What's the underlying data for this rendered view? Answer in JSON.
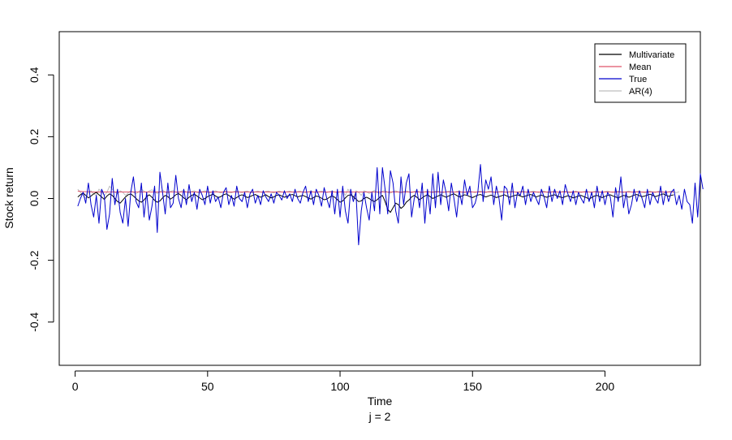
{
  "chart_data": {
    "type": "line",
    "xlabel": "Time",
    "subtitle": "j = 2",
    "ylabel": "Stock return",
    "xlim": [
      -6,
      236
    ],
    "ylim": [
      -0.54,
      0.54
    ],
    "x_ticks": [
      0,
      50,
      100,
      150,
      200
    ],
    "y_ticks": [
      -0.4,
      -0.2,
      0.0,
      0.2,
      0.4
    ],
    "x_tick_labels": [
      "0",
      "50",
      "100",
      "150",
      "200"
    ],
    "y_tick_labels": [
      "-0.4",
      "-0.2",
      "0.0",
      "0.2",
      "0.4"
    ],
    "legend": {
      "position": "top-right",
      "entries": [
        "Multivariate",
        "Mean",
        "True",
        "AR(4)"
      ]
    },
    "series": [
      {
        "name": "Multivariate",
        "color": "#000000",
        "x_start": 1,
        "values": [
          0.005,
          0.012,
          0.018,
          0.01,
          0.002,
          0.008,
          0.015,
          0.02,
          0.012,
          0.005,
          -0.003,
          0.008,
          0.015,
          0.01,
          0.0,
          -0.01,
          -0.015,
          -0.005,
          0.005,
          0.012,
          0.015,
          0.008,
          0.0,
          -0.008,
          -0.012,
          -0.005,
          0.006,
          0.012,
          0.004,
          -0.006,
          -0.012,
          -0.008,
          0.002,
          0.01,
          0.006,
          -0.002,
          0.004,
          0.012,
          0.016,
          0.01,
          0.002,
          -0.004,
          0.004,
          0.01,
          0.014,
          0.008,
          0.002,
          -0.004,
          0.0,
          0.006,
          0.01,
          0.014,
          0.008,
          0.003,
          0.006,
          0.012,
          0.015,
          0.01,
          0.004,
          -0.002,
          0.003,
          0.009,
          0.012,
          0.008,
          0.003,
          0.006,
          0.01,
          0.013,
          0.008,
          0.004,
          0.008,
          0.012,
          0.006,
          0.002,
          0.005,
          0.01,
          0.012,
          0.008,
          0.004,
          0.007,
          0.011,
          0.013,
          0.009,
          0.005,
          0.008,
          0.01,
          0.006,
          0.002,
          -0.002,
          0.003,
          0.008,
          0.006,
          0.001,
          -0.004,
          -0.002,
          0.004,
          0.008,
          0.004,
          -0.004,
          -0.012,
          -0.008,
          0.002,
          0.01,
          0.012,
          0.006,
          -0.002,
          -0.01,
          -0.008,
          0.0,
          0.004,
          0.0,
          -0.006,
          -0.01,
          -0.004,
          0.004,
          0.01,
          -0.01,
          -0.035,
          -0.045,
          -0.03,
          -0.015,
          -0.02,
          -0.032,
          -0.025,
          -0.012,
          -0.005,
          0.005,
          0.01,
          0.004,
          -0.004,
          0.002,
          0.008,
          0.012,
          0.006,
          0.0,
          0.004,
          0.008,
          0.012,
          0.008,
          0.004,
          0.008,
          0.012,
          0.015,
          0.01,
          0.005,
          0.008,
          0.012,
          0.01,
          0.006,
          0.003,
          0.007,
          0.011,
          0.013,
          0.009,
          0.005,
          0.008,
          0.011,
          0.007,
          0.003,
          0.006,
          0.009,
          0.012,
          0.008,
          0.004,
          0.007,
          0.01,
          0.012,
          0.008,
          0.005,
          0.008,
          0.011,
          0.013,
          0.009,
          0.005,
          0.008,
          0.011,
          0.007,
          0.004,
          0.007,
          0.01,
          0.012,
          0.008,
          0.005,
          0.003,
          0.006,
          0.009,
          0.006,
          0.002,
          0.005,
          0.008,
          0.01,
          0.006,
          0.003,
          -0.002,
          0.003,
          0.008,
          0.01,
          0.006,
          0.003,
          0.007,
          0.01,
          0.012,
          0.008,
          0.005,
          0.002,
          0.006,
          0.01,
          0.008,
          0.004,
          0.007,
          0.011,
          0.013,
          0.009,
          0.006,
          0.008,
          0.011,
          0.014,
          0.01,
          0.006,
          0.009,
          0.012,
          0.015,
          0.011,
          0.007,
          0.01,
          0.012
        ]
      },
      {
        "name": "Mean",
        "color": "#df536b",
        "x_start": 1,
        "values": [
          0.024,
          0.023,
          0.022,
          0.022,
          0.022,
          0.021,
          0.021,
          0.021,
          0.021,
          0.021,
          0.021,
          0.021,
          0.021,
          0.021,
          0.021,
          0.021,
          0.021,
          0.021,
          0.021,
          0.021,
          0.021,
          0.021,
          0.021,
          0.021,
          0.021,
          0.021,
          0.021,
          0.021,
          0.021,
          0.021,
          0.021,
          0.021,
          0.021,
          0.021,
          0.021,
          0.021,
          0.021,
          0.021,
          0.021,
          0.021,
          0.021,
          0.021,
          0.021,
          0.021,
          0.021,
          0.021,
          0.021,
          0.021,
          0.021,
          0.021,
          0.021,
          0.021,
          0.021,
          0.021,
          0.021,
          0.021,
          0.021,
          0.021,
          0.021,
          0.021,
          0.021,
          0.021,
          0.021,
          0.021,
          0.021,
          0.021,
          0.021,
          0.021,
          0.021,
          0.021,
          0.021,
          0.021,
          0.021,
          0.021,
          0.021,
          0.021,
          0.021,
          0.021,
          0.021,
          0.021,
          0.021,
          0.021,
          0.021,
          0.021,
          0.021,
          0.021,
          0.021,
          0.021,
          0.021,
          0.021,
          0.021,
          0.021,
          0.021,
          0.021,
          0.021,
          0.021,
          0.021,
          0.021,
          0.021,
          0.021,
          0.021,
          0.021,
          0.021,
          0.021,
          0.021,
          0.021,
          0.021,
          0.021,
          0.021,
          0.021,
          0.021,
          0.021,
          0.021,
          0.021,
          0.021,
          0.021,
          0.021,
          0.021,
          0.021,
          0.021,
          0.021,
          0.021,
          0.021,
          0.021,
          0.021,
          0.021,
          0.021,
          0.021,
          0.021,
          0.021,
          0.021,
          0.021,
          0.021,
          0.021,
          0.021,
          0.021,
          0.021,
          0.021,
          0.021,
          0.021,
          0.021,
          0.021,
          0.021,
          0.021,
          0.021,
          0.021,
          0.021,
          0.021,
          0.021,
          0.021,
          0.021,
          0.021,
          0.021,
          0.021,
          0.021,
          0.021,
          0.021,
          0.021,
          0.021,
          0.021,
          0.021,
          0.021,
          0.021,
          0.021,
          0.021,
          0.021,
          0.021,
          0.021,
          0.021,
          0.021,
          0.021,
          0.021,
          0.021,
          0.021,
          0.021,
          0.021,
          0.021,
          0.021,
          0.021,
          0.021,
          0.021,
          0.021,
          0.021,
          0.021,
          0.021,
          0.021,
          0.021,
          0.021,
          0.021,
          0.021,
          0.021,
          0.021,
          0.021,
          0.021,
          0.021,
          0.021,
          0.021,
          0.021,
          0.021,
          0.021,
          0.021,
          0.021,
          0.021,
          0.021,
          0.021,
          0.021,
          0.021,
          0.021,
          0.021,
          0.021,
          0.021,
          0.021,
          0.021,
          0.021,
          0.021,
          0.021,
          0.021,
          0.021,
          0.021,
          0.021,
          0.021,
          0.021,
          0.021,
          0.021,
          0.021,
          0.021
        ]
      },
      {
        "name": "True",
        "color": "#0000cd",
        "x_start": 1,
        "values": [
          -0.025,
          0.0,
          0.02,
          -0.015,
          0.05,
          -0.02,
          -0.06,
          0.01,
          -0.08,
          0.03,
          0.01,
          -0.1,
          -0.05,
          0.065,
          -0.02,
          0.03,
          -0.045,
          -0.08,
          0.0,
          -0.09,
          0.02,
          0.07,
          -0.01,
          -0.03,
          0.05,
          -0.06,
          0.02,
          -0.07,
          -0.025,
          0.04,
          -0.11,
          0.085,
          0.02,
          -0.05,
          0.05,
          -0.03,
          -0.015,
          0.075,
          0.0,
          -0.03,
          0.03,
          -0.02,
          0.045,
          -0.01,
          0.02,
          -0.035,
          0.03,
          0.01,
          -0.02,
          0.04,
          -0.015,
          0.025,
          -0.01,
          0.005,
          -0.03,
          0.02,
          0.035,
          -0.02,
          0.01,
          -0.025,
          0.04,
          0.0,
          -0.01,
          0.02,
          -0.03,
          0.015,
          0.03,
          -0.015,
          0.01,
          -0.02,
          0.025,
          0.005,
          -0.01,
          0.015,
          -0.015,
          0.02,
          0.01,
          -0.005,
          0.025,
          0.0,
          0.015,
          -0.01,
          0.03,
          0.0,
          -0.015,
          0.02,
          0.04,
          -0.01,
          0.025,
          -0.02,
          0.03,
          0.01,
          -0.025,
          0.035,
          0.0,
          -0.03,
          0.025,
          -0.05,
          0.03,
          -0.06,
          0.04,
          -0.04,
          -0.08,
          0.03,
          -0.01,
          0.02,
          -0.15,
          -0.04,
          0.02,
          -0.03,
          -0.07,
          0.02,
          -0.04,
          0.1,
          -0.05,
          0.1,
          0.03,
          -0.05,
          0.09,
          0.05,
          -0.04,
          -0.08,
          0.07,
          -0.02,
          0.05,
          0.08,
          -0.06,
          0.0,
          0.03,
          -0.03,
          0.05,
          -0.08,
          0.03,
          -0.05,
          0.08,
          -0.03,
          0.085,
          -0.02,
          0.06,
          0.02,
          -0.04,
          0.05,
          0.0,
          -0.06,
          0.025,
          -0.02,
          0.06,
          0.01,
          0.04,
          -0.03,
          -0.015,
          0.02,
          0.11,
          -0.01,
          0.06,
          0.03,
          0.07,
          -0.02,
          0.04,
          0.0,
          -0.07,
          0.04,
          0.03,
          -0.02,
          0.05,
          -0.03,
          0.02,
          0.01,
          0.04,
          -0.02,
          0.03,
          -0.01,
          0.02,
          0.0,
          -0.02,
          0.03,
          0.005,
          -0.03,
          0.04,
          -0.01,
          0.03,
          0.0,
          0.025,
          -0.02,
          0.045,
          0.015,
          -0.01,
          0.025,
          -0.02,
          0.02,
          0.0,
          -0.015,
          0.03,
          -0.01,
          0.02,
          -0.03,
          0.04,
          -0.01,
          0.025,
          -0.02,
          0.02,
          0.005,
          -0.06,
          0.035,
          -0.01,
          0.07,
          -0.03,
          0.02,
          -0.05,
          -0.02,
          0.03,
          -0.01,
          0.025,
          0.0,
          -0.03,
          0.03,
          -0.02,
          0.02,
          0.0,
          -0.015,
          0.04,
          -0.02,
          0.025,
          -0.01,
          0.02,
          0.03,
          -0.02,
          0.01,
          -0.035,
          0.03,
          -0.01,
          -0.02,
          -0.08,
          0.05,
          -0.06,
          0.08,
          0.03
        ]
      },
      {
        "name": "AR(4)",
        "color": "#bebebe",
        "x_start": 1,
        "values": [
          0.03,
          0.02,
          0.01,
          0.0,
          0.02,
          0.025,
          0.015,
          0.01,
          0.03,
          0.02,
          0.01,
          0.02,
          0.04,
          0.03,
          0.02,
          0.015,
          0.025,
          0.02,
          0.01,
          0.018,
          0.025,
          0.02,
          0.015,
          0.022,
          0.03,
          0.024,
          0.018,
          0.025,
          0.028,
          0.022,
          0.016,
          0.022,
          0.027,
          0.021,
          0.017,
          0.023,
          0.026,
          0.02,
          0.018,
          0.024,
          0.026,
          0.021,
          0.018,
          0.023,
          0.025,
          0.02,
          0.017,
          0.022,
          0.025,
          0.021,
          0.018,
          0.023,
          0.025,
          0.021,
          0.018,
          0.022,
          0.024,
          0.02,
          0.018,
          0.023,
          0.025,
          0.021,
          0.019,
          0.023,
          0.024,
          0.02,
          0.018,
          0.022,
          0.024,
          0.021,
          0.019,
          0.023,
          0.024,
          0.02,
          0.018,
          0.022,
          0.024,
          0.021,
          0.019,
          0.022,
          0.024,
          0.021,
          0.019,
          0.023,
          0.024,
          0.02,
          0.019,
          0.022,
          0.024,
          0.021,
          0.019,
          0.022,
          0.024,
          0.021,
          0.019,
          0.022,
          0.024,
          0.021,
          0.019,
          0.022,
          0.024,
          0.01,
          0.03,
          0.015,
          0.0,
          0.025,
          0.02,
          0.01,
          0.025,
          0.022,
          0.016,
          0.022,
          0.026,
          0.02,
          0.016,
          0.024,
          0.026,
          0.02,
          0.017,
          0.023,
          0.025,
          0.021,
          0.018,
          0.022,
          0.025,
          0.021,
          0.018,
          0.023,
          0.025,
          0.021,
          0.018,
          0.022,
          0.024,
          0.021,
          0.019,
          0.023,
          0.024,
          0.02,
          0.018,
          0.022,
          0.024,
          0.021,
          0.019,
          0.023,
          0.024,
          0.02,
          0.018,
          0.022,
          0.024,
          0.021,
          0.019,
          0.022,
          0.024,
          0.021,
          0.019,
          0.023,
          0.024,
          0.02,
          0.019,
          0.022,
          0.024,
          0.021,
          0.019,
          0.022,
          0.024,
          0.021,
          0.019,
          0.022,
          0.024,
          0.021,
          0.019,
          0.022,
          0.024,
          0.021,
          0.019,
          0.023,
          0.024,
          0.02,
          0.018,
          0.022,
          0.024,
          0.021,
          0.019,
          0.023,
          0.024,
          0.02,
          0.018,
          0.022,
          0.024,
          0.021,
          0.019,
          0.022,
          0.024,
          0.021,
          0.019,
          0.023,
          0.024,
          0.02,
          0.019,
          0.022,
          0.024,
          0.021,
          0.019,
          0.022,
          0.024,
          0.021,
          0.019,
          0.022,
          0.024,
          0.021,
          0.019,
          0.023,
          0.024,
          0.02,
          0.018,
          0.022,
          0.024,
          0.021,
          0.019,
          0.023,
          0.024,
          0.02,
          0.018,
          0.022,
          0.024,
          0.021,
          0.019,
          0.022
        ]
      }
    ]
  }
}
